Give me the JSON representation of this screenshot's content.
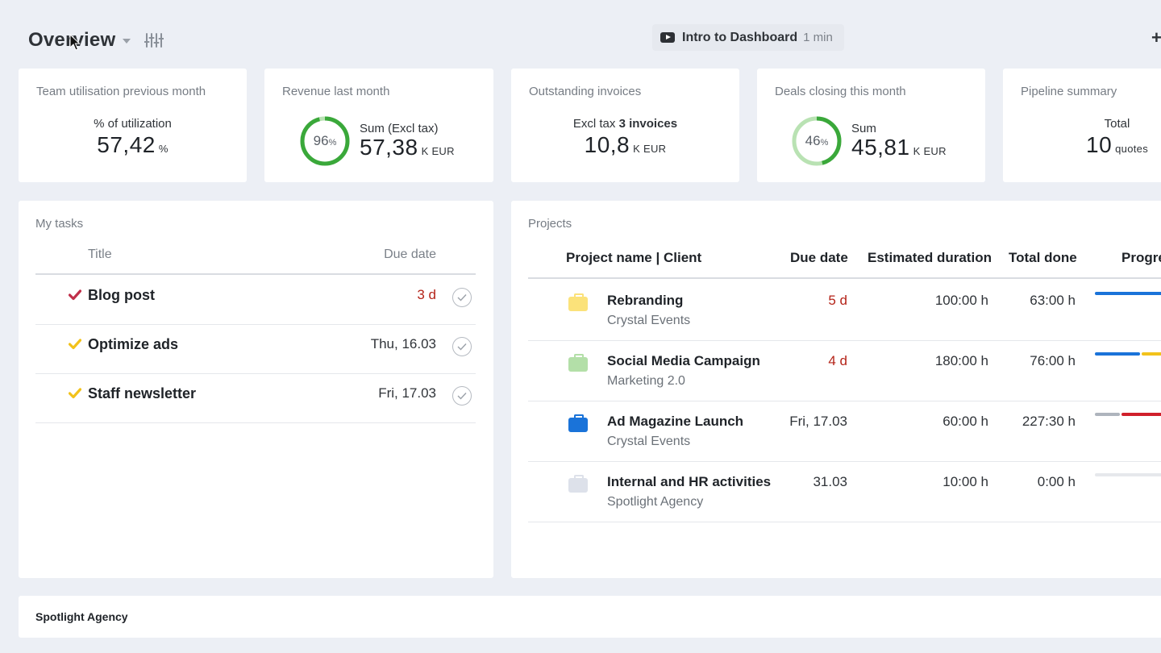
{
  "header": {
    "title": "Overview",
    "intro_label": "Intro to Dashboard",
    "intro_duration": "1 min"
  },
  "kpis": {
    "utilisation": {
      "title": "Team utilisation previous month",
      "sub": "% of utilization",
      "value": "57,42",
      "unit": "%"
    },
    "revenue": {
      "title": "Revenue last month",
      "sub": "Sum (Excl tax)",
      "value": "57,38",
      "unit": "K  EUR",
      "ring_percent": 96,
      "ring_label": "96",
      "ring_suffix": "%",
      "ring_color": "#3aa83a"
    },
    "invoices": {
      "title": "Outstanding invoices",
      "sub_prefix": "Excl tax",
      "sub_bold": "3 invoices",
      "value": "10,8",
      "unit": "K  EUR"
    },
    "deals": {
      "title": "Deals closing this month",
      "sub": "Sum",
      "value": "45,81",
      "unit": "K  EUR",
      "ring_percent": 46,
      "ring_label": "46",
      "ring_suffix": "%",
      "ring_color": "#3aa83a",
      "ring_track": "#b9e2b3"
    },
    "pipeline": {
      "title": "Pipeline summary",
      "sub": "Total",
      "value": "10",
      "unit": "quotes"
    }
  },
  "tasks": {
    "title": "My tasks",
    "col_title": "Title",
    "col_due": "Due date",
    "items": [
      {
        "name": "Blog post",
        "due": "3 d",
        "check_color": "#c0304a"
      },
      {
        "name": "Optimize ads",
        "due": "Thu, 16.03",
        "check_color": "#f2c21b"
      },
      {
        "name": "Staff newsletter",
        "due": "Fri, 17.03",
        "check_color": "#f2c21b"
      }
    ]
  },
  "projects": {
    "title": "Projects",
    "columns": [
      "Project name | Client",
      "Due date",
      "Estimated duration",
      "Total done",
      "Progre"
    ],
    "rows": [
      {
        "name": "Rebranding",
        "client": "Crystal Events",
        "due": "5 d",
        "estimated": "100:00 h",
        "done": "63:00 h",
        "color": "#fbe27a"
      },
      {
        "name": "Social Media Campaign",
        "client": "Marketing 2.0",
        "due": "4 d",
        "estimated": "180:00 h",
        "done": "76:00 h",
        "color": "#b3dfa8"
      },
      {
        "name": "Ad Magazine Launch",
        "client": "Crystal Events",
        "due": "Fri, 17.03",
        "estimated": "60:00 h",
        "done": "227:30 h",
        "color": "#1a73d9"
      },
      {
        "name": "Internal and HR activities",
        "client": "Spotlight Agency",
        "due": "31.03",
        "estimated": "10:00 h",
        "done": "0:00 h",
        "color": "#dde1ea"
      }
    ]
  },
  "footer": {
    "label": "Spotlight Agency"
  }
}
